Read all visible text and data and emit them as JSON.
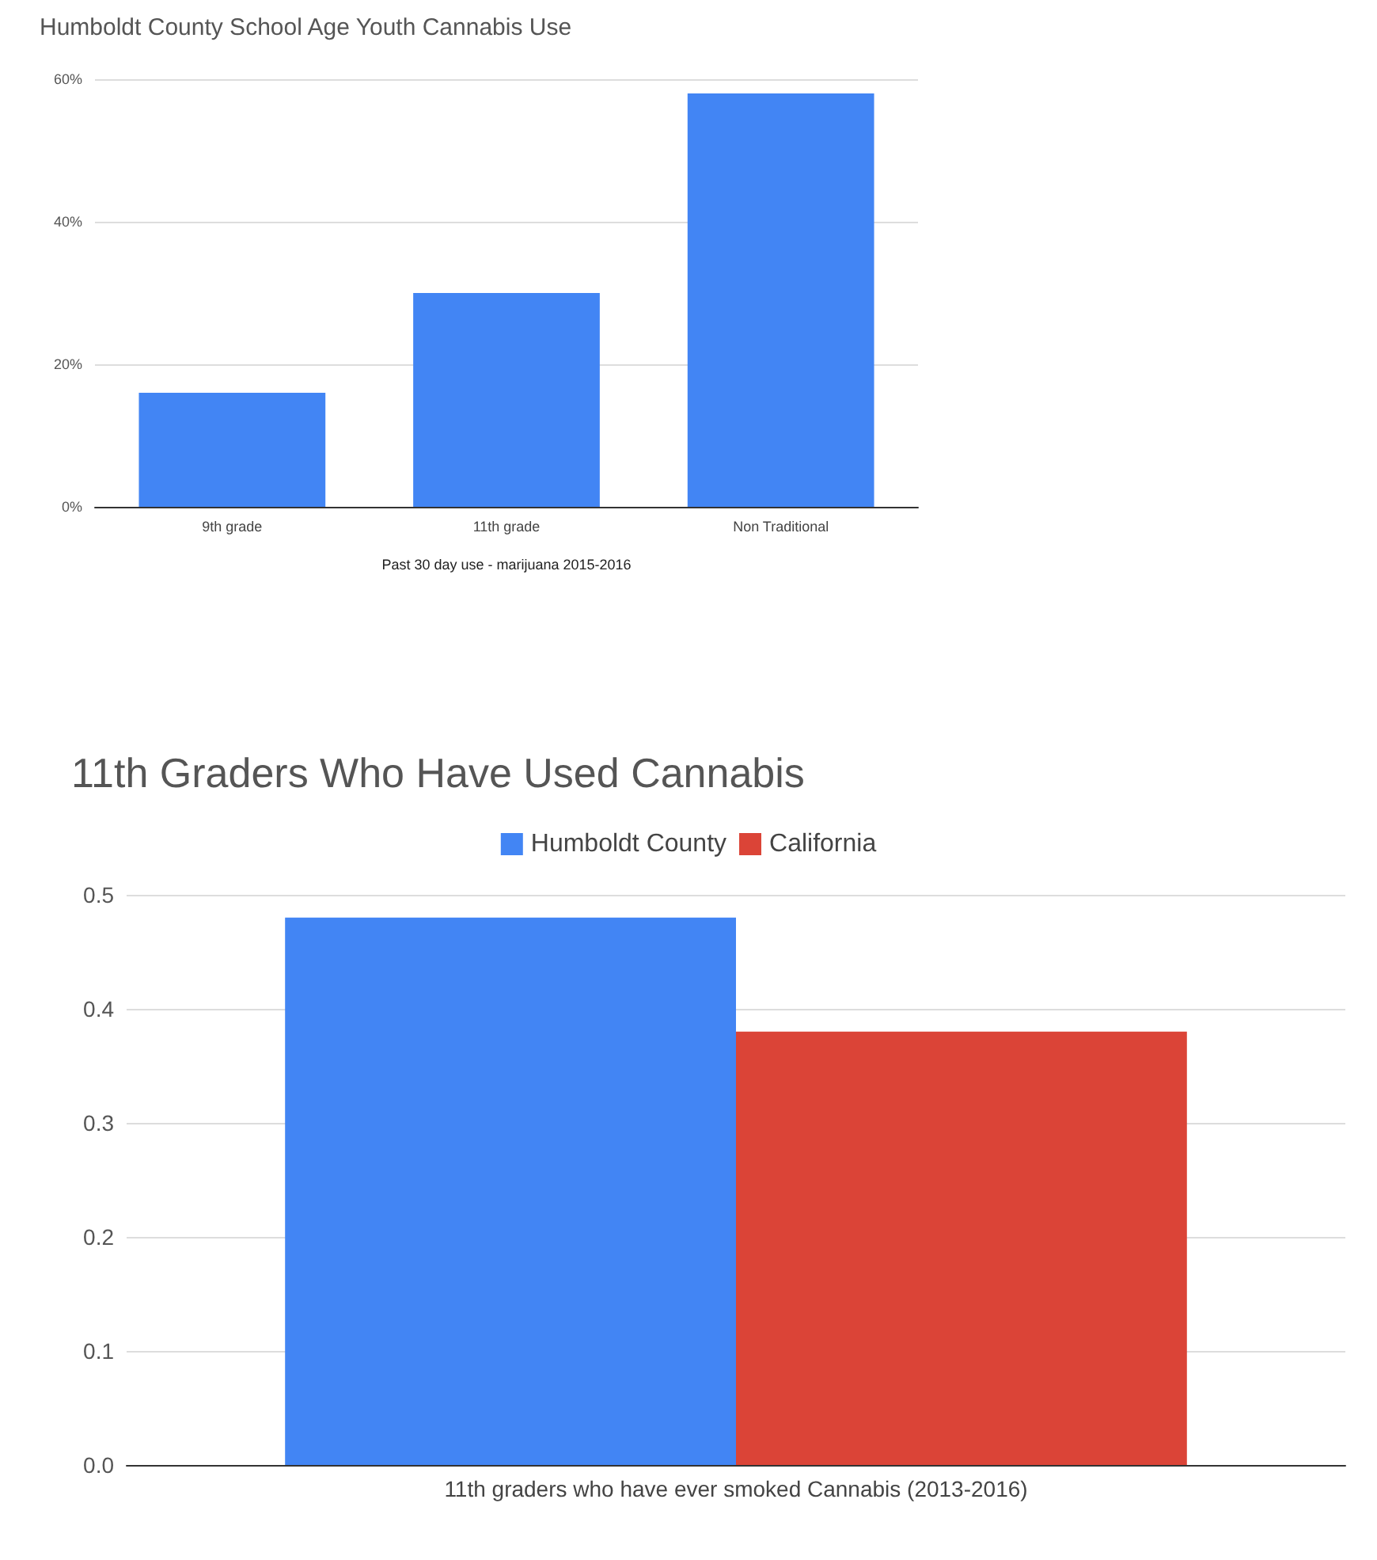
{
  "chart_data": [
    {
      "type": "bar",
      "title": "Humboldt County School Age Youth Cannabis Use",
      "xlabel": "Past 30 day use - marijuana 2015-2016",
      "categories": [
        "9th grade",
        "11th grade",
        "Non Traditional"
      ],
      "values": [
        16,
        30,
        58
      ],
      "color": "#4285f4",
      "ylim": [
        0,
        60
      ],
      "yticks": [
        {
          "value": 0,
          "label": "0%"
        },
        {
          "value": 20,
          "label": "20%"
        },
        {
          "value": 40,
          "label": "40%"
        },
        {
          "value": 60,
          "label": "60%"
        }
      ],
      "grid": "y",
      "legend": false
    },
    {
      "type": "bar",
      "title": "11th Graders Who Have Used Cannabis",
      "categories": [
        "11th graders who have ever smoked Cannabis (2013-2016)"
      ],
      "series": [
        {
          "name": "Humboldt County",
          "color": "#4285f4",
          "values": [
            0.48
          ]
        },
        {
          "name": "California",
          "color": "#db4437",
          "values": [
            0.38
          ]
        }
      ],
      "ylim": [
        0,
        0.5
      ],
      "yticks": [
        {
          "value": 0,
          "label": "0.0"
        },
        0.1,
        0.2,
        0.3,
        0.4,
        0.5
      ],
      "grid": "y",
      "legend": "top"
    }
  ]
}
